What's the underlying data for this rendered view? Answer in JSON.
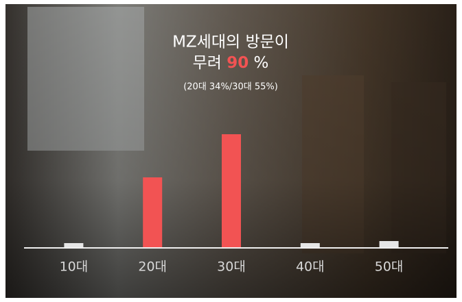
{
  "chart_data": {
    "type": "bar",
    "title_line1": "MZ세대의 방문이",
    "title_line2": {
      "prefix": "무려",
      "highlight": "90",
      "suffix": "%"
    },
    "subtitle": "(20대 34%/30대 55%)",
    "categories": [
      "10대",
      "20대",
      "30대",
      "40대",
      "50대"
    ],
    "values": [
      2,
      34,
      55,
      2,
      3
    ],
    "colors": [
      "#e6e6e6",
      "#f25353",
      "#f25353",
      "#e6e6e6",
      "#e6e6e6"
    ],
    "highlight_color": "#f25353",
    "ylim": [
      0,
      60
    ]
  }
}
